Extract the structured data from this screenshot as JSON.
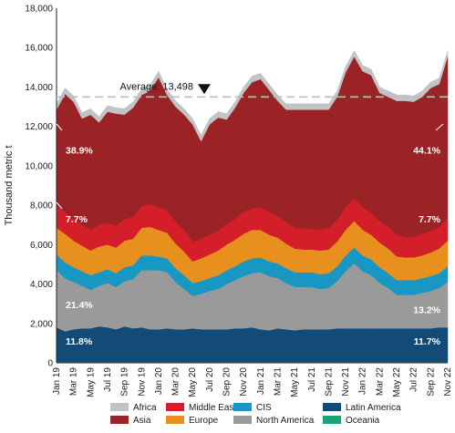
{
  "chart_data": {
    "type": "area",
    "stacked": true,
    "ylabel": "Thousand metric t",
    "ylim": [
      0,
      18000
    ],
    "yticks": [
      0,
      2000,
      4000,
      6000,
      8000,
      10000,
      12000,
      14000,
      16000,
      18000
    ],
    "ytick_labels": [
      "0",
      "2,000",
      "4,000",
      "6,000",
      "8,000",
      "10,000",
      "12,000",
      "14,000",
      "16,000",
      "18,000"
    ],
    "x": [
      "Jan 19",
      "Feb 19",
      "Mar 19",
      "Apr 19",
      "May 19",
      "Jun 19",
      "Jul 19",
      "Aug 19",
      "Sep 19",
      "Oct 19",
      "Nov 19",
      "Dec 19",
      "Jan 20",
      "Feb 20",
      "Mar 20",
      "Apr 20",
      "May 20",
      "Jun 20",
      "Jul 20",
      "Aug 20",
      "Sep 20",
      "Oct 20",
      "Nov 20",
      "Dec 20",
      "Jan 21",
      "Feb 21",
      "Mar 21",
      "Apr 21",
      "May 21",
      "Jun 21",
      "Jul 21",
      "Aug 21",
      "Sep 21",
      "Oct 21",
      "Nov 21",
      "Dec 21",
      "Jan 22",
      "Feb 22",
      "Mar 22",
      "Apr 22",
      "May 22",
      "Jun 22",
      "Jul 22",
      "Aug 22",
      "Sep 22",
      "Oct 22",
      "Nov 22"
    ],
    "xtick_labels": [
      "Jan 19",
      "Mar 19",
      "May 19",
      "Jul 19",
      "Sep 19",
      "Nov 19",
      "Jan 20",
      "Mar 20",
      "May 20",
      "Jul 20",
      "Sep 20",
      "Nov 20",
      "Jan 21",
      "Mar 21",
      "May 21",
      "Jul 21",
      "Sep 21",
      "Nov 21",
      "Jan 22",
      "Mar 22",
      "May 22",
      "Jul 22",
      "Sep 22",
      "Nov 22"
    ],
    "series": [
      {
        "name": "Oceania",
        "color": "#1aa37a",
        "values": [
          50,
          50,
          50,
          50,
          50,
          50,
          50,
          50,
          50,
          50,
          50,
          50,
          50,
          50,
          50,
          50,
          50,
          50,
          50,
          50,
          50,
          50,
          50,
          50,
          50,
          50,
          50,
          50,
          50,
          50,
          50,
          50,
          50,
          50,
          50,
          50,
          50,
          50,
          50,
          50,
          50,
          50,
          50,
          50,
          50,
          50,
          50
        ]
      },
      {
        "name": "Latin America",
        "color": "#134b78",
        "values": [
          1750,
          1550,
          1650,
          1700,
          1700,
          1800,
          1750,
          1650,
          1800,
          1700,
          1750,
          1650,
          1650,
          1700,
          1650,
          1650,
          1700,
          1650,
          1650,
          1650,
          1650,
          1700,
          1700,
          1750,
          1650,
          1600,
          1700,
          1650,
          1600,
          1650,
          1650,
          1650,
          1650,
          1700,
          1700,
          1700,
          1700,
          1700,
          1700,
          1700,
          1700,
          1700,
          1700,
          1700,
          1700,
          1750,
          1750
        ]
      },
      {
        "name": "North America",
        "color": "#9a9a9a",
        "values": [
          2900,
          2700,
          2400,
          2150,
          1950,
          2050,
          2250,
          2150,
          2300,
          2500,
          2900,
          3000,
          3000,
          2850,
          2400,
          2050,
          1650,
          1800,
          1950,
          2050,
          2300,
          2450,
          2650,
          2750,
          2900,
          2750,
          2550,
          2350,
          2200,
          2150,
          2150,
          2050,
          2100,
          2400,
          2900,
          3300,
          2900,
          2700,
          2300,
          2050,
          1700,
          1700,
          1700,
          1800,
          1900,
          2000,
          2300
        ]
      },
      {
        "name": "CIS",
        "color": "#1797c2",
        "values": [
          800,
          800,
          750,
          750,
          750,
          700,
          700,
          700,
          700,
          700,
          750,
          750,
          700,
          700,
          700,
          700,
          650,
          650,
          650,
          700,
          700,
          700,
          750,
          750,
          750,
          750,
          750,
          750,
          750,
          750,
          750,
          750,
          750,
          750,
          800,
          800,
          800,
          800,
          800,
          750,
          750,
          750,
          750,
          750,
          750,
          750,
          800
        ]
      },
      {
        "name": "Europe",
        "color": "#e8901e",
        "values": [
          1350,
          1450,
          1350,
          1300,
          1250,
          1300,
          1250,
          1300,
          1350,
          1350,
          1400,
          1450,
          1350,
          1300,
          1250,
          1200,
          1100,
          1150,
          1200,
          1250,
          1300,
          1350,
          1400,
          1450,
          1400,
          1350,
          1300,
          1250,
          1200,
          1150,
          1150,
          1200,
          1200,
          1250,
          1300,
          1350,
          1300,
          1250,
          1250,
          1250,
          1200,
          1150,
          1150,
          1150,
          1200,
          1250,
          1300
        ]
      },
      {
        "name": "Middle East",
        "color": "#d41f2b",
        "values": [
          1100,
          1100,
          1100,
          1050,
          1050,
          1100,
          1100,
          1100,
          1100,
          1100,
          1100,
          1150,
          1150,
          1150,
          1100,
          1100,
          1000,
          1000,
          1000,
          1000,
          1050,
          1050,
          1100,
          1100,
          1150,
          1150,
          1100,
          1100,
          1050,
          1050,
          1050,
          1050,
          1100,
          1100,
          1150,
          1150,
          1150,
          1100,
          1100,
          1100,
          1100,
          1050,
          1050,
          1100,
          1100,
          1100,
          1150
        ]
      },
      {
        "name": "Asia",
        "color": "#9b2325",
        "values": [
          4900,
          6000,
          5950,
          5400,
          5850,
          5200,
          5650,
          5700,
          5300,
          5550,
          5650,
          5750,
          6600,
          5850,
          5850,
          5850,
          5950,
          4950,
          5600,
          5750,
          5300,
          5650,
          6050,
          6400,
          6500,
          6200,
          5850,
          5700,
          6000,
          6050,
          6050,
          6100,
          6000,
          6250,
          6850,
          7200,
          6900,
          7000,
          6500,
          6600,
          6800,
          6900,
          6850,
          6950,
          7250,
          7250,
          8200
        ]
      },
      {
        "name": "Africa",
        "color": "#c0c4c6",
        "values": [
          300,
          300,
          300,
          300,
          300,
          300,
          300,
          300,
          300,
          300,
          300,
          300,
          300,
          300,
          300,
          300,
          300,
          300,
          300,
          300,
          300,
          300,
          300,
          300,
          300,
          300,
          300,
          300,
          300,
          300,
          300,
          300,
          300,
          300,
          300,
          300,
          300,
          300,
          300,
          300,
          300,
          300,
          300,
          300,
          300,
          300,
          300
        ]
      }
    ],
    "average": {
      "value": 13498,
      "label": "Average: 13,498"
    },
    "annotations": [
      {
        "series": "Asia",
        "x": "Jan 19",
        "y": 10800,
        "label": "38.9%"
      },
      {
        "series": "Asia",
        "x": "Nov 22",
        "y": 10800,
        "label": "44.1%"
      },
      {
        "series": "Middle East",
        "x": "Jan 19",
        "y": 7300,
        "label": "7.7%"
      },
      {
        "series": "Middle East",
        "x": "Nov 22",
        "y": 7300,
        "label": "7.7%"
      },
      {
        "series": "North America",
        "x": "Jan 19",
        "y": 2950,
        "label": "21.4%"
      },
      {
        "series": "North America",
        "x": "Nov 22",
        "y": 2700,
        "label": "13.2%"
      },
      {
        "series": "Latin America",
        "x": "Jan 19",
        "y": 1100,
        "label": "11.8%"
      },
      {
        "series": "Latin America",
        "x": "Nov 22",
        "y": 1100,
        "label": "11.7%"
      }
    ],
    "legend": {
      "placement": "bottom",
      "items": [
        "Africa",
        "Middle East",
        "CIS",
        "Latin America",
        "Asia",
        "Europe",
        "North America",
        "Oceania"
      ]
    },
    "grid": false
  }
}
